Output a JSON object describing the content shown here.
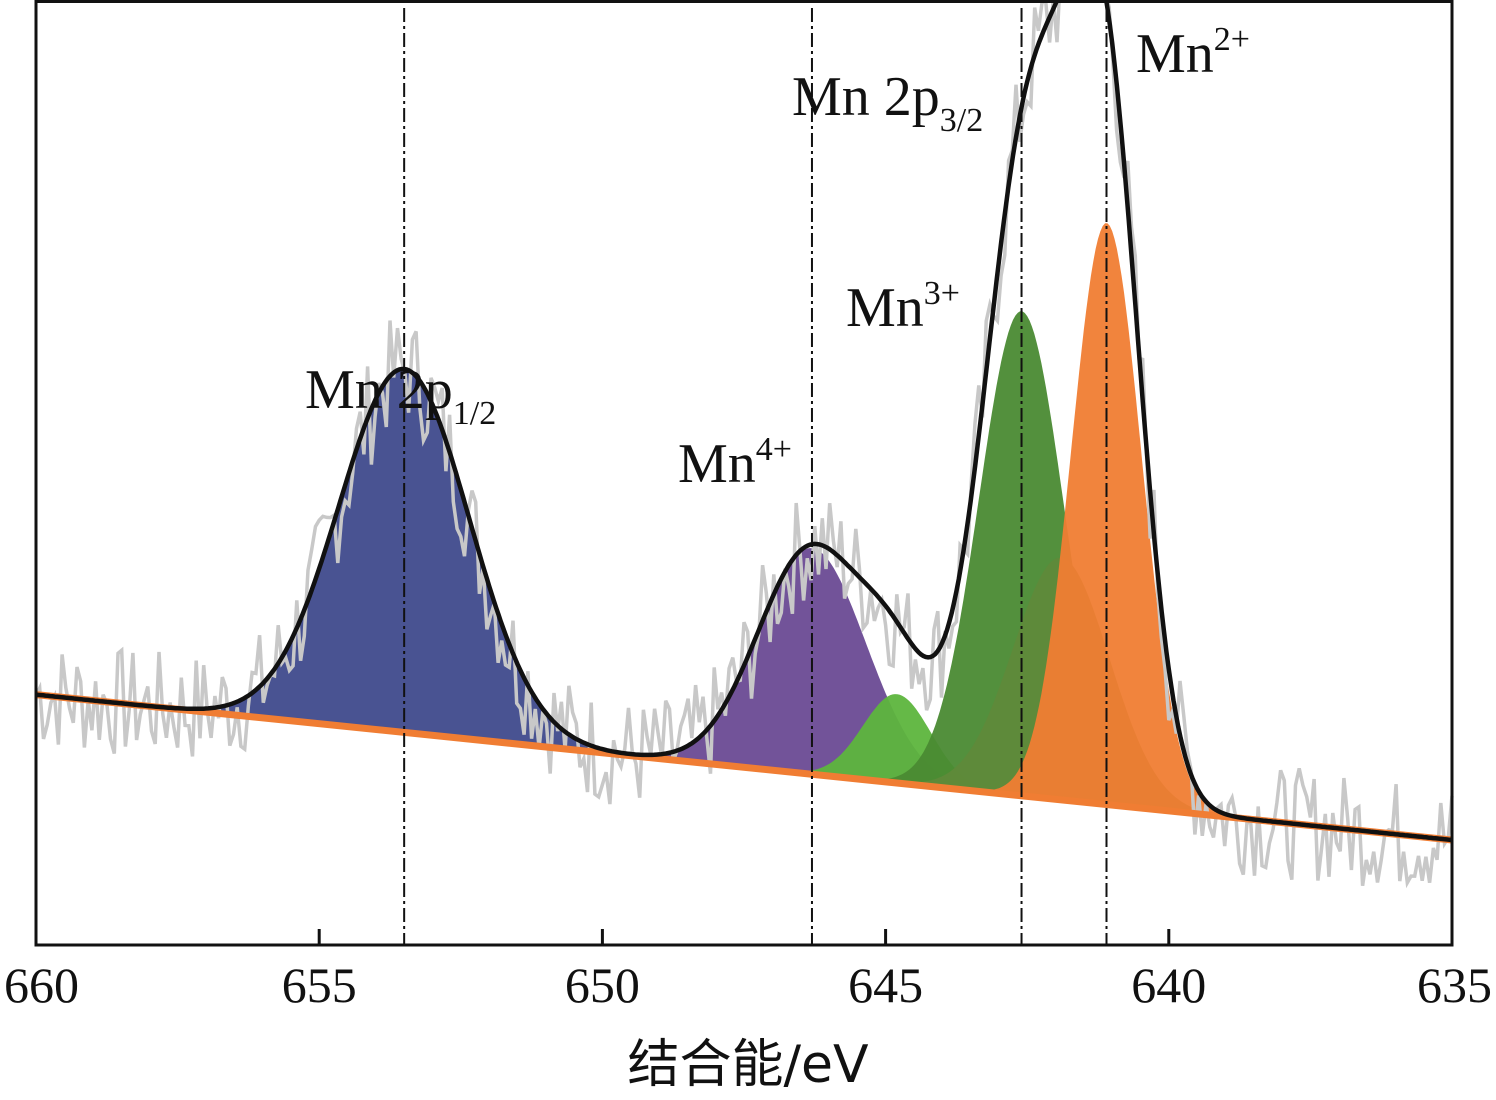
{
  "chart_data": {
    "type": "line",
    "xlabel": "结合能/eV",
    "ylabel": "",
    "xlim": [
      660,
      635
    ],
    "x_reversed": true,
    "x_ticks": [
      660,
      655,
      650,
      645,
      640,
      635
    ],
    "grid": false,
    "legend": "none",
    "reference_lines": [
      653.5,
      646.3,
      642.6,
      641.1
    ],
    "annotations": [
      {
        "base": "Mn 2p",
        "sub": "1/2",
        "sup": "",
        "x": 653.5
      },
      {
        "base": "Mn",
        "sub": "",
        "sup": "4+",
        "x": 646.3
      },
      {
        "base": "Mn",
        "sub": "",
        "sup": "3+",
        "x": 643.5
      },
      {
        "base": "Mn 2p",
        "sub": "3/2",
        "sup": "",
        "x": 642.6
      },
      {
        "base": "Mn",
        "sub": "",
        "sup": "2+",
        "x": 641.1
      }
    ],
    "baseline": {
      "x": [
        660,
        635
      ],
      "y": [
        0.19,
        0.01
      ],
      "color": "#f07d33"
    },
    "peaks": [
      {
        "center": 653.5,
        "height": 0.45,
        "sigma": 1.15,
        "color": "#3f4a8c"
      },
      {
        "center": 646.3,
        "height": 0.28,
        "sigma": 0.95,
        "color": "#6a4a93"
      },
      {
        "center": 644.8,
        "height": 0.11,
        "sigma": 0.6,
        "color": "#5db53d"
      },
      {
        "center": 642.6,
        "height": 0.6,
        "sigma": 0.75,
        "color": "#4a8a33"
      },
      {
        "center": 641.9,
        "height": 0.3,
        "sigma": 0.85,
        "color": "#5f8a3a"
      },
      {
        "center": 641.1,
        "height": 0.72,
        "sigma": 0.62,
        "color": "#f07d33"
      }
    ],
    "fit_color": "#111111",
    "raw_color": "#c8c8c8",
    "ylim": [
      -0.12,
      1.05
    ]
  }
}
